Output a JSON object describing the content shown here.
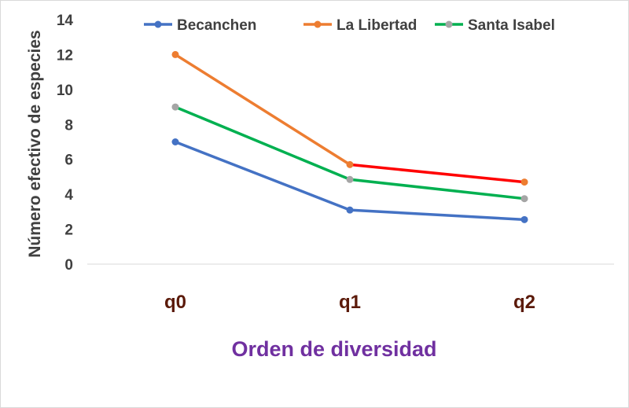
{
  "chart_data": {
    "type": "line",
    "title": "",
    "categories": [
      "q0",
      "q1",
      "q2"
    ],
    "xlabel": "Orden de diversidad",
    "ylabel": "Número efectivo de especies",
    "ylim": [
      0,
      14
    ],
    "yticks": [
      "0",
      "2",
      "4",
      "6",
      "8",
      "10",
      "12",
      "14"
    ],
    "grid": false,
    "legend_position": "top",
    "series": [
      {
        "name": "Becanchen",
        "values": [
          7.0,
          3.1,
          2.55
        ],
        "line_color": "#4472c4",
        "marker_color": "#4472c4"
      },
      {
        "name": "La Libertad",
        "values": [
          12.0,
          5.7,
          4.7
        ],
        "line_color": "#ed7d31",
        "segment_colors": [
          "#ed7d31",
          "#ff0000"
        ],
        "marker_color": "#ed7d31"
      },
      {
        "name": "Santa Isabel",
        "values": [
          9.0,
          4.85,
          3.75
        ],
        "line_color": "#00b050",
        "marker_color": "#a5a5a5"
      }
    ]
  }
}
